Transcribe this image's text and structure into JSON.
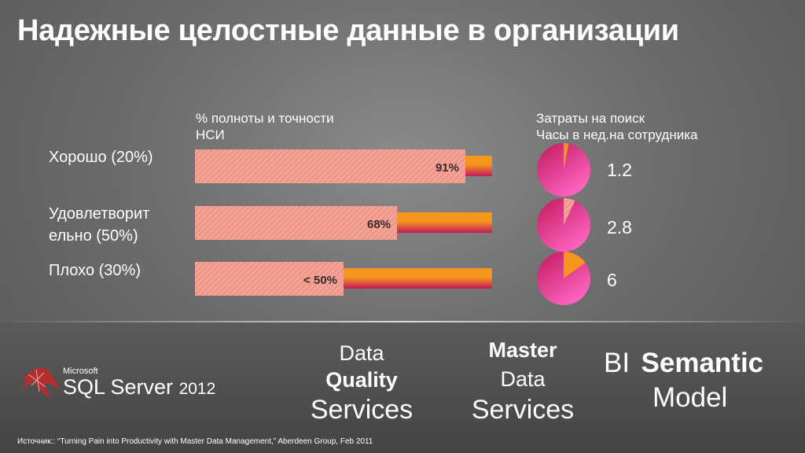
{
  "title": "Надежные целостные данные в организации",
  "colors": {
    "bar_light": "#f4a295",
    "bar_orange": "#f7941d",
    "bar_magenta": "#c2185b",
    "pie_pink": "#ec4aa6",
    "pie_orange": "#f7941d"
  },
  "chart_data": {
    "type": "bar",
    "completeness_header": [
      "% полноты и точности",
      "НСИ"
    ],
    "cost_header": [
      "Затраты на поиск",
      "Часы в нед.на сотрудника"
    ],
    "categories": [
      "Хорошо (20%)",
      "Удовлетворит ельно (50%)",
      "Плохо (30%)"
    ],
    "category_lines": [
      [
        "Хорошо (20%)"
      ],
      [
        "Удовлетворит",
        "ельно (50%)"
      ],
      [
        "Плохо (30%)"
      ]
    ],
    "values": [
      91,
      68,
      50
    ],
    "value_labels": [
      "91%",
      "68%",
      "< 50%"
    ],
    "xlim": [
      0,
      100
    ],
    "hours": [
      1.2,
      2.8,
      6
    ],
    "hours_labels": [
      "1.2",
      "2.8",
      "6"
    ]
  },
  "logo": {
    "microsoft": "Microsoft",
    "product": "SQL Server",
    "year": "2012"
  },
  "services": {
    "dqs": [
      "Data",
      "Quality",
      "Services"
    ],
    "mds": [
      "Master",
      "Data",
      "Services"
    ],
    "bi": [
      "BI",
      "Semantic",
      "Model"
    ]
  },
  "source": "Источник:: “Turning Pain into Productivity with Master Data Management,” Aberdeen Group, Feb 2011"
}
